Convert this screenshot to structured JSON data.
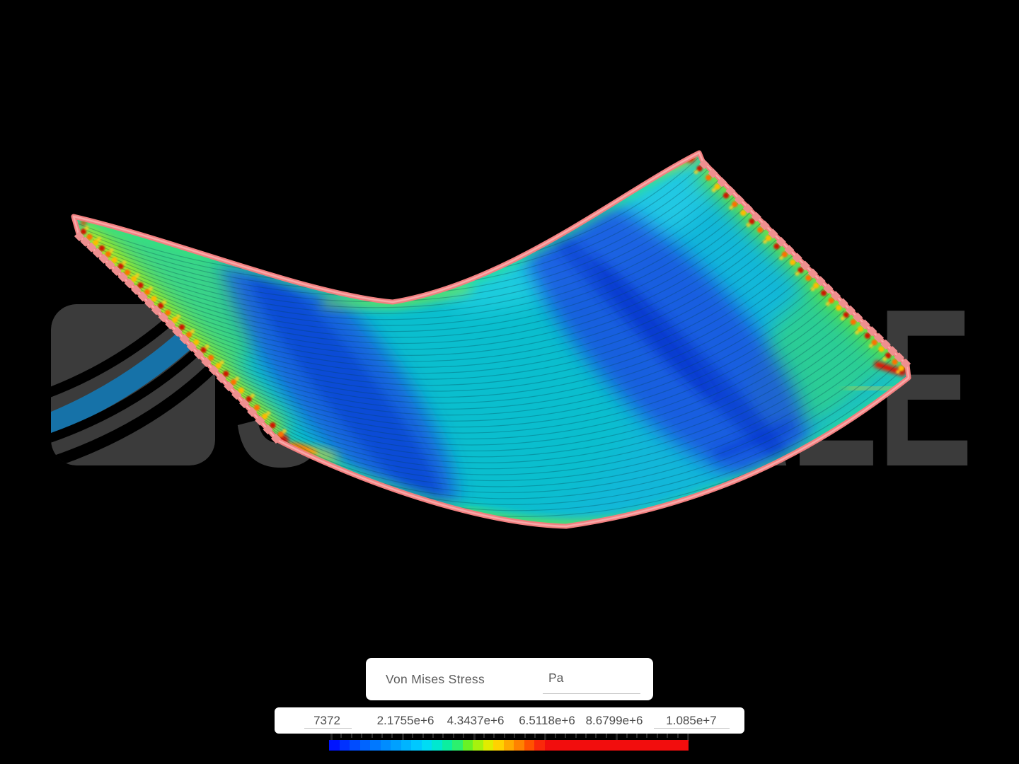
{
  "scene": {
    "background": "#000000",
    "watermark": {
      "text": "SIMSCALE",
      "color": "#3b3b3b",
      "logo_swoosh_color": "#1672a8"
    },
    "surface_outline_color": "#f28080"
  },
  "legend": {
    "field_label": "Von Mises Stress",
    "unit_label": "Pa",
    "scale_labels": [
      "7372",
      "2.1755e+6",
      "4.3437e+6",
      "6.5118e+6",
      "8.6799e+6",
      "1.085e+7"
    ],
    "ticks": {
      "count": 36,
      "major_every": 7
    }
  },
  "chart_data": {
    "type": "heatmap",
    "title": "Von Mises Stress",
    "unit": "Pa",
    "colormap": "rainbow-blue-to-red",
    "legend_position": "bottom",
    "scale_min": 7372,
    "scale_max": 10850000,
    "tick_values": [
      7372,
      2175500,
      4343700,
      6511800,
      8679900,
      10850000
    ],
    "tick_labels": [
      "7372",
      "2.1755e+6",
      "4.3437e+6",
      "6.5118e+6",
      "8.6799e+6",
      "1.085e+7"
    ],
    "colormap_segments": [
      "#0014ff",
      "#0032ff",
      "#004cff",
      "#0064ff",
      "#0078ff",
      "#008cff",
      "#00a0ff",
      "#00b4ff",
      "#00c8ff",
      "#00dcf4",
      "#00e8d0",
      "#0ceea0",
      "#2cf06e",
      "#68f226",
      "#a6f20e",
      "#e0ec00",
      "#ffd200",
      "#ffaa00",
      "#ff8200",
      "#ff5200",
      "#fa280a",
      "#f20d0d",
      "#f20d0d",
      "#f20d0d",
      "#f20d0d",
      "#f20d0d",
      "#f20d0d",
      "#f20d0d",
      "#f20d0d",
      "#f20d0d",
      "#f20d0d",
      "#f20d0d",
      "#f20d0d",
      "#f20d0d",
      "#f20d0d"
    ],
    "field_summary": "Von Mises stress contour on a deformed twisted plate: low stress (blue) diagonal mid-span bands, cyan/teal field, high stress (red/orange) along the serrated clamped side edges, at the top-right corner, the bottom-left notch and the right tip."
  }
}
